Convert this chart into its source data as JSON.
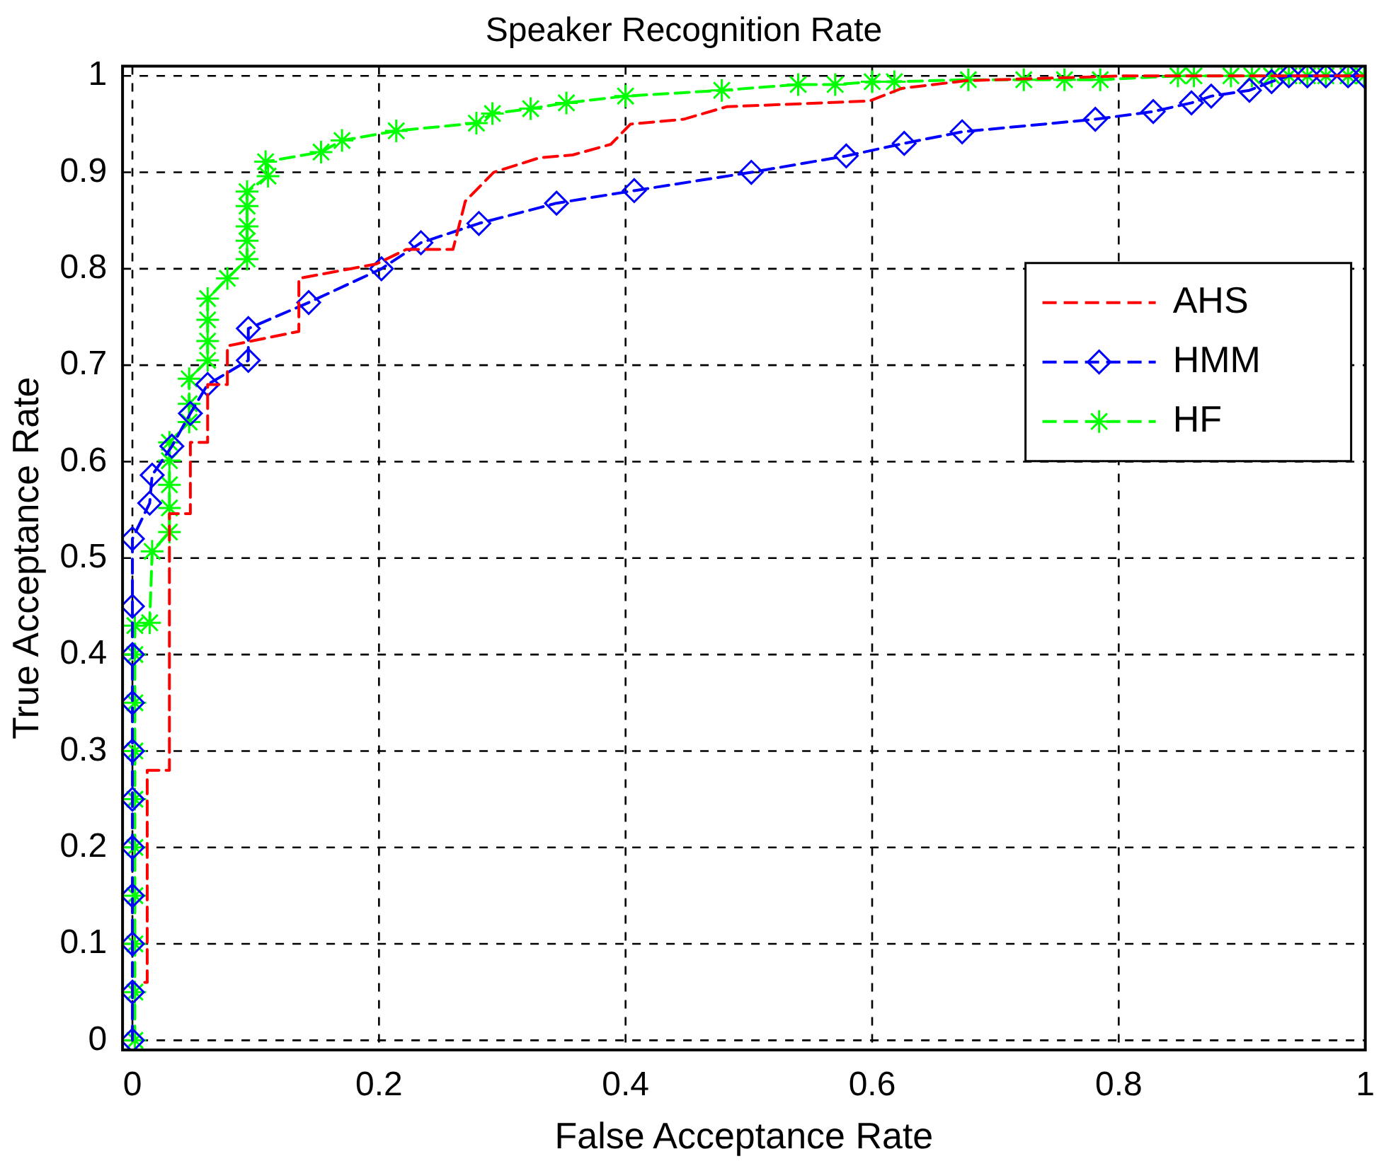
{
  "chart_data": {
    "type": "line",
    "title": "Speaker Recognition Rate",
    "xlabel": "False Acceptance Rate",
    "ylabel": "True Acceptance Rate",
    "xlim": [
      -0.008,
      1
    ],
    "ylim": [
      -0.01,
      1.01
    ],
    "xticks": [
      0,
      0.2,
      0.4,
      0.6,
      0.8,
      1
    ],
    "yticks": [
      0,
      0.1,
      0.2,
      0.3,
      0.4,
      0.5,
      0.6,
      0.7,
      0.8,
      0.9,
      1
    ],
    "grid": true,
    "legend": "right",
    "line_style": "dashed",
    "series": [
      {
        "name": "AHS",
        "color": "#ff0000",
        "marker": "none",
        "x": [
          0.01,
          0.012,
          0.012,
          0.03,
          0.03,
          0.047,
          0.047,
          0.061,
          0.061,
          0.077,
          0.077,
          0.135,
          0.135,
          0.198,
          0.222,
          0.26,
          0.27,
          0.293,
          0.33,
          0.357,
          0.388,
          0.404,
          0.447,
          0.482,
          0.598,
          0.624,
          0.676,
          0.805,
          1
        ],
        "values": [
          0.06,
          0.06,
          0.28,
          0.28,
          0.546,
          0.546,
          0.62,
          0.62,
          0.68,
          0.68,
          0.72,
          0.735,
          0.79,
          0.805,
          0.82,
          0.82,
          0.87,
          0.9,
          0.915,
          0.918,
          0.929,
          0.95,
          0.955,
          0.968,
          0.974,
          0.987,
          0.995,
          1,
          1
        ]
      },
      {
        "name": "HMM",
        "color": "#0000ff",
        "marker": "diamond",
        "x": [
          0,
          0,
          0,
          0,
          0,
          0,
          0,
          0,
          0,
          0,
          0,
          0.014,
          0.016,
          0.032,
          0.047,
          0.061,
          0.094,
          0.094,
          0.143,
          0.202,
          0.234,
          0.281,
          0.344,
          0.407,
          0.502,
          0.579,
          0.626,
          0.673,
          0.781,
          0.828,
          0.859,
          0.875,
          0.906,
          0.924,
          0.938,
          0.953,
          0.968,
          0.986,
          0.999
        ],
        "values": [
          0,
          0.05,
          0.1,
          0.15,
          0.2,
          0.25,
          0.3,
          0.35,
          0.4,
          0.45,
          0.52,
          0.557,
          0.586,
          0.616,
          0.65,
          0.68,
          0.705,
          0.738,
          0.765,
          0.8,
          0.827,
          0.847,
          0.868,
          0.881,
          0.9,
          0.917,
          0.93,
          0.942,
          0.955,
          0.963,
          0.972,
          0.979,
          0.985,
          0.994,
          1,
          1,
          1,
          1,
          1
        ]
      },
      {
        "name": "HF",
        "color": "#00ff00",
        "marker": "cross",
        "x": [
          0.002,
          0.002,
          0.002,
          0.002,
          0.002,
          0.002,
          0.002,
          0.002,
          0.002,
          0.002,
          0.014,
          0.016,
          0.03,
          0.03,
          0.03,
          0.03,
          0.03,
          0.046,
          0.046,
          0.046,
          0.061,
          0.061,
          0.061,
          0.061,
          0.077,
          0.093,
          0.093,
          0.093,
          0.093,
          0.093,
          0.11,
          0.108,
          0.153,
          0.17,
          0.214,
          0.279,
          0.292,
          0.323,
          0.352,
          0.4,
          0.478,
          0.54,
          0.57,
          0.6,
          0.618,
          0.678,
          0.723,
          0.756,
          0.785,
          0.848,
          0.861,
          0.891,
          0.908,
          0.924,
          0.938,
          0.953,
          0.968,
          0.986,
          0.999
        ],
        "values": [
          0,
          0.05,
          0.1,
          0.15,
          0.2,
          0.25,
          0.3,
          0.35,
          0.4,
          0.43,
          0.433,
          0.507,
          0.527,
          0.552,
          0.576,
          0.601,
          0.62,
          0.641,
          0.66,
          0.686,
          0.705,
          0.725,
          0.747,
          0.769,
          0.79,
          0.81,
          0.829,
          0.844,
          0.865,
          0.88,
          0.896,
          0.911,
          0.921,
          0.933,
          0.943,
          0.951,
          0.961,
          0.966,
          0.972,
          0.979,
          0.985,
          0.991,
          0.991,
          0.994,
          0.994,
          0.996,
          0.996,
          0.996,
          0.996,
          1,
          1,
          1,
          1,
          1,
          1,
          1,
          1,
          1,
          1
        ]
      }
    ]
  }
}
